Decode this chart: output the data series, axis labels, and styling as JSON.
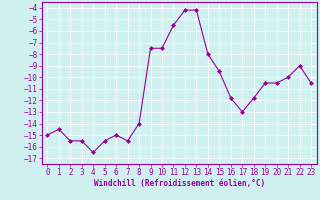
{
  "x": [
    0,
    1,
    2,
    3,
    4,
    5,
    6,
    7,
    8,
    9,
    10,
    11,
    12,
    13,
    14,
    15,
    16,
    17,
    18,
    19,
    20,
    21,
    22,
    23
  ],
  "y": [
    -15,
    -14.5,
    -15.5,
    -15.5,
    -16.5,
    -15.5,
    -15,
    -15.5,
    -14,
    -7.5,
    -7.5,
    -5.5,
    -4.2,
    -4.2,
    -8,
    -9.5,
    -11.8,
    -13,
    -11.8,
    -10.5,
    -10.5,
    -10,
    -9,
    -10.5
  ],
  "line_color": "#990099",
  "marker": "D",
  "marker_size": 2,
  "bg_color": "#d0f0f0",
  "grid_color": "#b0d8d8",
  "xlabel": "Windchill (Refroidissement éolien,°C)",
  "xlabel_fontsize": 5.5,
  "yticks": [
    -4,
    -5,
    -6,
    -7,
    -8,
    -9,
    -10,
    -11,
    -12,
    -13,
    -14,
    -15,
    -16,
    -17
  ],
  "xticks": [
    0,
    1,
    2,
    3,
    4,
    5,
    6,
    7,
    8,
    9,
    10,
    11,
    12,
    13,
    14,
    15,
    16,
    17,
    18,
    19,
    20,
    21,
    22,
    23
  ],
  "ylim": [
    -17.5,
    -3.5
  ],
  "xlim": [
    -0.5,
    23.5
  ],
  "tick_fontsize": 5.5,
  "tick_color": "#990099",
  "spine_color": "#990099"
}
